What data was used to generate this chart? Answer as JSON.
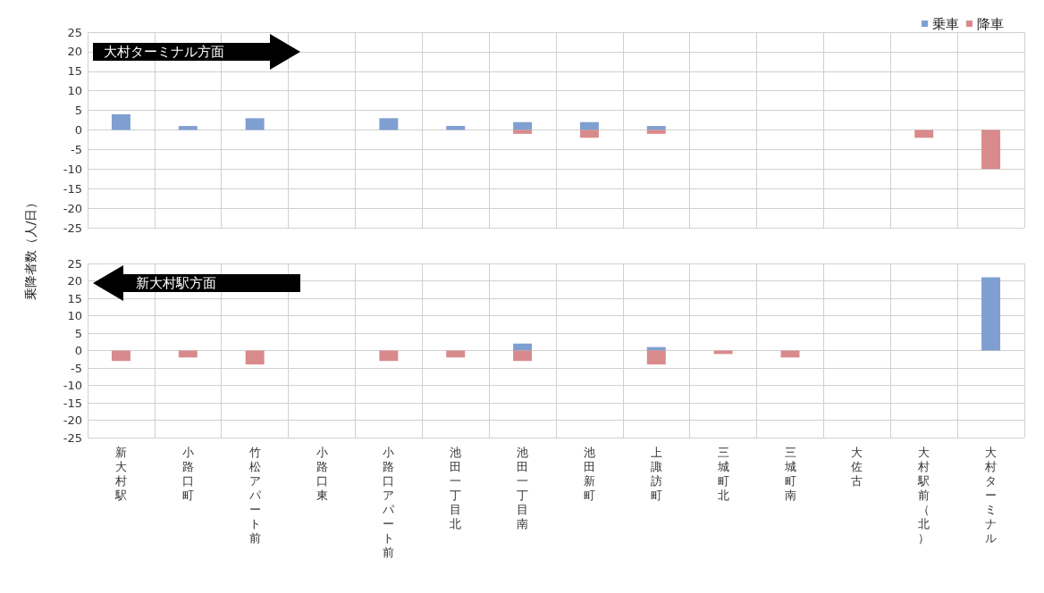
{
  "chart_data": [
    {
      "type": "bar",
      "ylabel": "乗降者数（人/日）",
      "annotations": [
        "大村ターミナル方面"
      ],
      "categories": [
        "新大村駅",
        "小路口町",
        "竹松アパート前",
        "小路口東",
        "小路口アパート前",
        "池田一丁目北",
        "池田一丁目南",
        "池田新町",
        "上諏訪町",
        "三城町北",
        "三城町南",
        "大佐古",
        "大村駅前（北）",
        "大村ターミナル"
      ],
      "series": [
        {
          "name": "乗車",
          "color": "#7f9fd0",
          "values": [
            4,
            1,
            3,
            null,
            3,
            1,
            2,
            2,
            1,
            null,
            null,
            null,
            null,
            null
          ]
        },
        {
          "name": "降車",
          "color": "#d98a8c",
          "values": [
            null,
            null,
            null,
            null,
            null,
            null,
            -1,
            -2,
            -1,
            null,
            null,
            null,
            -2,
            -10
          ]
        }
      ],
      "ylim": [
        -25,
        25
      ],
      "yticks": [
        -25,
        -20,
        -15,
        -10,
        -5,
        0,
        5,
        10,
        15,
        20,
        25
      ],
      "grid": true,
      "legend": "top right",
      "tick_labels": "y"
    },
    {
      "type": "bar",
      "annotations": [
        "新大村駅方面"
      ],
      "categories": [
        "新大村駅",
        "小路口町",
        "竹松アパート前",
        "小路口東",
        "小路口アパート前",
        "池田一丁目北",
        "池田一丁目南",
        "池田新町",
        "上諏訪町",
        "三城町北",
        "三城町南",
        "大佐古",
        "大村駅前（北）",
        "大村ターミナル"
      ],
      "series": [
        {
          "color": "#7f9fd0",
          "values": [
            null,
            null,
            null,
            null,
            null,
            null,
            2,
            null,
            1,
            null,
            null,
            null,
            null,
            21
          ]
        },
        {
          "color": "#d98a8c",
          "values": [
            -3,
            -2,
            -4,
            null,
            -3,
            -2,
            -3,
            null,
            -4,
            -1,
            -2,
            null,
            null,
            null
          ]
        }
      ],
      "ylim": [
        -25,
        25
      ],
      "yticks": [
        -25,
        -20,
        -15,
        -10,
        -5,
        0,
        5,
        10,
        15,
        20,
        25
      ],
      "grid": true,
      "legend": false
    }
  ]
}
